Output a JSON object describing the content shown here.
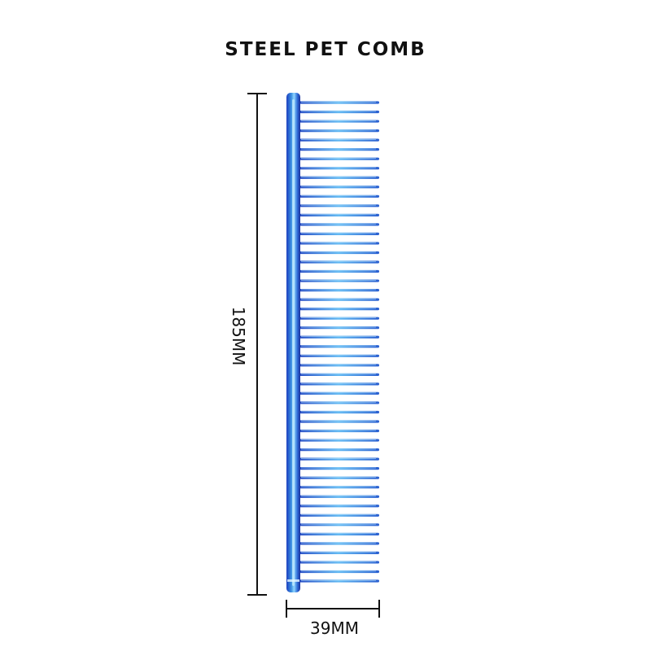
{
  "title": "STEEL PET COMB",
  "dimensions": {
    "height_label": "185MM",
    "width_label": "39MM"
  },
  "colors": {
    "background": "#ffffff",
    "text": "#111111",
    "comb_dark": "#1d3fbf",
    "comb_mid": "#3a8fe0",
    "comb_light": "#8fd6ff"
  },
  "comb": {
    "tooth_count": 52
  }
}
